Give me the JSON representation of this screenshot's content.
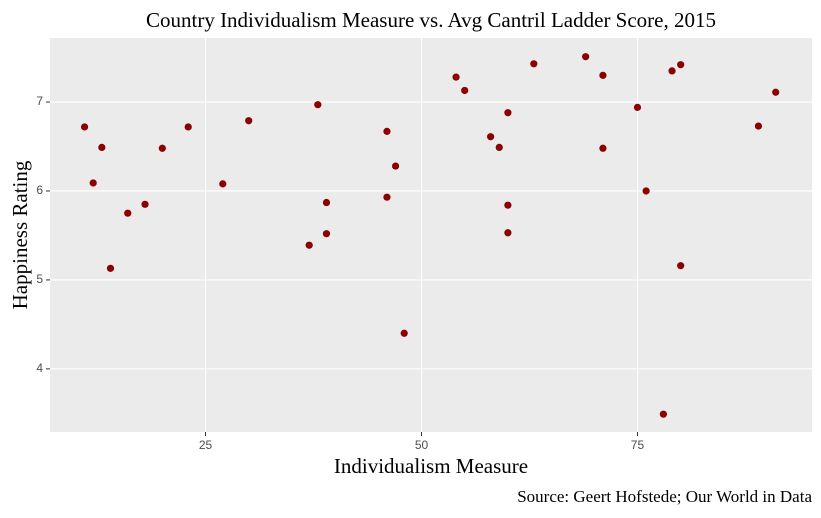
{
  "chart_data": {
    "type": "scatter",
    "title": "Country Individualism Measure vs. Avg Cantril Ladder Score, 2015",
    "x_label": "Individualism Measure",
    "y_label": "Happiness Rating",
    "caption": "Source: Geert Hofstede; Our World in Data",
    "color": "#8b0000",
    "grid": true,
    "xlim": [
      7,
      95.2
    ],
    "ylim": [
      3.29,
      7.72
    ],
    "xticks": [
      25,
      50,
      75
    ],
    "yticks": [
      4,
      5,
      6,
      7
    ],
    "x": [
      11,
      12,
      13,
      14,
      16,
      18,
      20,
      23,
      27,
      30,
      37,
      38,
      39,
      39,
      46,
      46,
      47,
      48,
      54,
      55,
      58,
      59,
      60,
      60,
      60,
      63,
      69,
      71,
      71,
      75,
      76,
      78,
      79,
      80,
      80,
      89,
      91
    ],
    "values": [
      6.72,
      6.09,
      6.49,
      5.13,
      5.75,
      5.85,
      6.48,
      6.72,
      6.08,
      6.79,
      5.39,
      6.97,
      5.87,
      5.52,
      6.67,
      5.93,
      6.28,
      4.4,
      7.28,
      7.13,
      6.61,
      6.49,
      6.88,
      5.84,
      5.53,
      7.43,
      7.51,
      7.3,
      6.48,
      6.94,
      6.0,
      3.49,
      7.35,
      7.42,
      5.16,
      6.73,
      7.11
    ]
  }
}
